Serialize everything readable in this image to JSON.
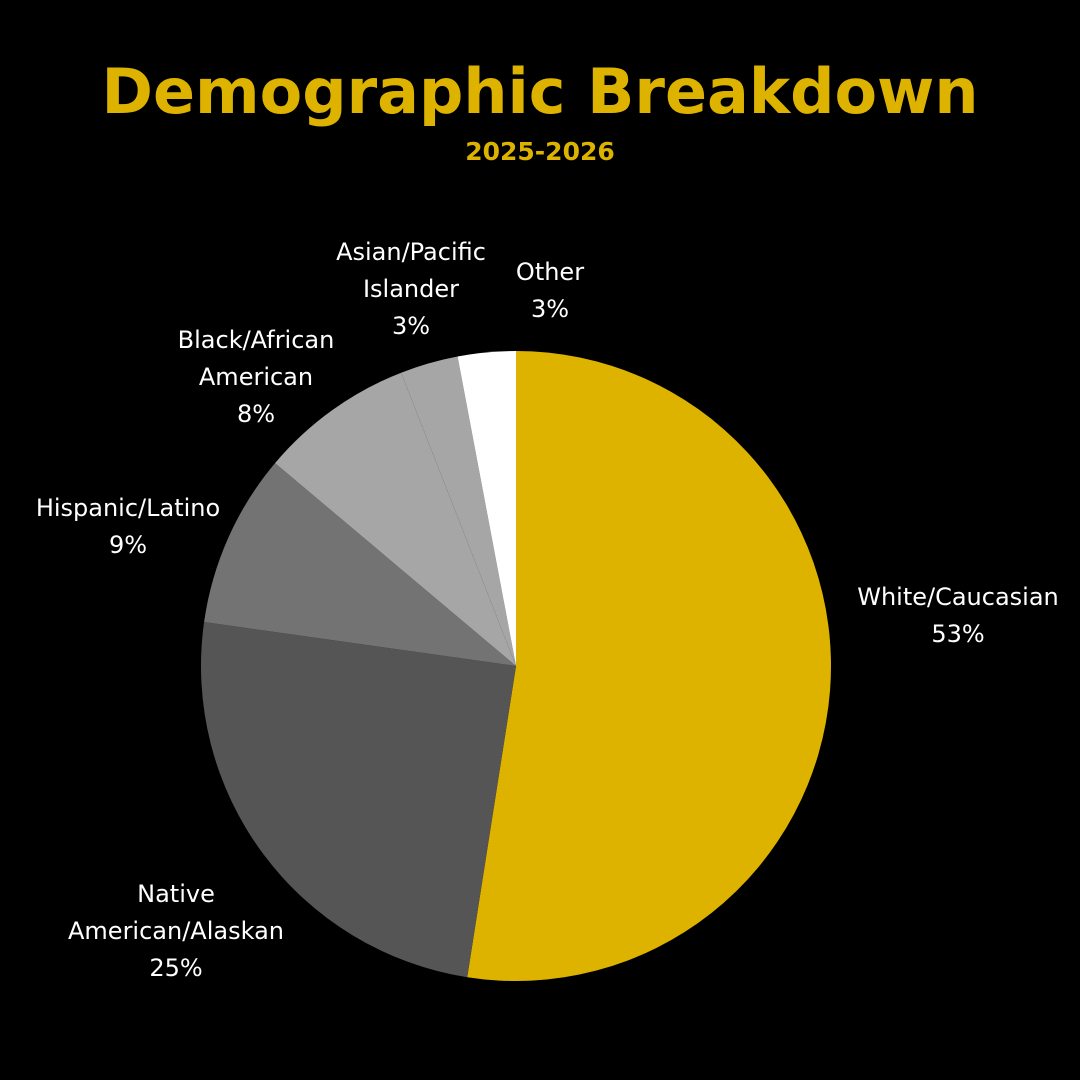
{
  "colors": {
    "background": "#000000",
    "accent": "#DDB300",
    "label_text": "#FFFFFF"
  },
  "chart_data": {
    "type": "pie",
    "title": "Demographic Breakdown",
    "subtitle": "2025-2026",
    "start": "top",
    "direction": "clockwise",
    "slices": [
      {
        "lines": [
          "White/Caucasian"
        ],
        "value_label": "53%",
        "value": 53,
        "color": "#DDB300"
      },
      {
        "lines": [
          "Native",
          "American/Alaskan"
        ],
        "value_label": "25%",
        "value": 25,
        "color": "#555555"
      },
      {
        "lines": [
          "Hispanic/Latino"
        ],
        "value_label": "9%",
        "value": 9,
        "color": "#737373"
      },
      {
        "lines": [
          "Black/African",
          "American"
        ],
        "value_label": "8%",
        "value": 8,
        "color": "#A6A6A6"
      },
      {
        "lines": [
          "Asian/Pacific",
          "Islander"
        ],
        "value_label": "3%",
        "value": 3,
        "color": "#A6A6A6"
      },
      {
        "lines": [
          "Other"
        ],
        "value_label": "3%",
        "value": 3,
        "color": "#FFFFFF"
      }
    ]
  }
}
